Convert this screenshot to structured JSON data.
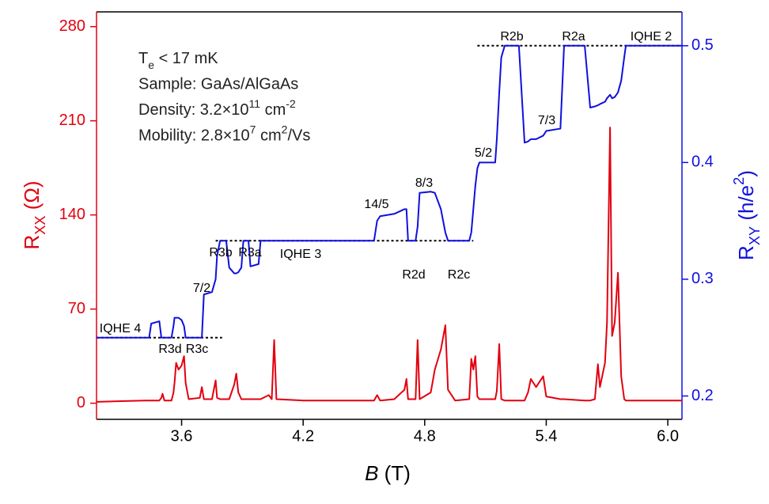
{
  "chart_data": {
    "type": "line",
    "x_label": [
      {
        "i": "B"
      },
      " (T)"
    ],
    "y_label": [
      "R",
      {
        "sub": "XX"
      },
      " (Ω)"
    ],
    "y2_label": [
      "R",
      {
        "sub": "XY"
      },
      " (h/e",
      {
        "sup": "2"
      },
      ")"
    ],
    "info": [
      [
        "T",
        {
          "sub": "e"
        },
        " < 17 mK"
      ],
      [
        "Sample: GaAs/AlGaAs"
      ],
      [
        "Density: 3.2×10",
        {
          "sup": "11"
        },
        " cm",
        {
          "sup": "-2"
        }
      ],
      [
        "Mobility: 2.8×10",
        {
          "sup": "7"
        },
        " cm",
        {
          "sup": "2"
        },
        "/Vs"
      ]
    ],
    "xlim": [
      3.18,
      6.07
    ],
    "xticks": [
      3.6,
      4.2,
      4.8,
      5.4,
      {
        "value": 6,
        "label": "6.0"
      }
    ],
    "ylim": [
      -12,
      291
    ],
    "yticks": [
      0,
      70,
      140,
      210,
      280
    ],
    "y2lim": [
      0.18,
      0.529
    ],
    "y2ticks": [
      0.2,
      0.3,
      0.4,
      0.5
    ],
    "x": [
      3.18,
      3.3,
      3.42,
      3.44,
      3.45,
      3.49,
      3.5,
      3.506,
      3.515,
      3.55,
      3.56,
      3.565,
      3.573,
      3.585,
      3.6,
      3.612,
      3.62,
      3.635,
      3.69,
      3.7,
      3.71,
      3.75,
      3.768,
      3.775,
      3.79,
      3.82,
      3.835,
      3.86,
      3.87,
      3.88,
      3.895,
      3.905,
      3.93,
      3.94,
      3.98,
      3.99,
      4.03,
      4.045,
      4.057,
      4.068,
      4.2,
      4.4,
      4.55,
      4.565,
      4.58,
      4.65,
      4.7,
      4.71,
      4.718,
      4.755,
      4.765,
      4.775,
      4.83,
      4.85,
      4.88,
      4.902,
      4.915,
      4.95,
      5.02,
      5.03,
      5.04,
      5.05,
      5.06,
      5.07,
      5.148,
      5.156,
      5.168,
      5.178,
      5.195,
      5.265,
      5.293,
      5.31,
      5.324,
      5.35,
      5.385,
      5.4,
      5.47,
      5.488,
      5.59,
      5.617,
      5.64,
      5.655,
      5.665,
      5.69,
      5.7,
      5.715,
      5.725,
      5.738,
      5.754,
      5.77,
      5.785,
      5.793,
      5.9,
      6.07
    ],
    "series": [
      {
        "name": "Rxx",
        "color": "#e3000f",
        "axis": "y",
        "values": [
          1,
          1.5,
          2,
          2,
          2,
          2,
          4,
          7,
          2,
          2,
          8,
          15,
          30,
          25,
          28,
          35,
          15,
          3,
          4,
          12,
          3,
          3,
          17,
          4,
          3,
          3,
          3,
          14,
          22,
          8,
          3,
          3,
          3,
          3,
          3,
          3,
          6,
          3,
          47,
          3,
          2,
          2,
          2,
          6,
          2,
          3,
          10,
          18,
          3,
          3,
          47,
          3,
          8,
          25,
          40,
          58,
          10,
          2,
          3,
          33,
          25,
          35,
          5,
          3,
          3,
          9,
          44,
          3,
          2,
          2,
          2,
          8,
          18,
          12,
          20,
          5,
          3,
          3,
          2,
          2,
          3,
          29,
          12,
          30,
          60,
          205,
          50,
          60,
          97,
          20,
          3,
          2,
          2,
          2
        ]
      },
      {
        "name": "Rxy",
        "color": "#1010e0",
        "axis": "y2",
        "values": [
          0.25,
          0.25,
          0.25,
          0.25,
          0.262,
          0.264,
          0.25,
          0.25,
          0.25,
          0.25,
          0.26,
          0.267,
          0.267,
          0.267,
          0.265,
          0.26,
          0.25,
          0.25,
          0.25,
          0.25,
          0.287,
          0.289,
          0.3,
          0.32,
          0.333,
          0.333,
          0.31,
          0.305,
          0.305,
          0.306,
          0.31,
          0.333,
          0.333,
          0.311,
          0.313,
          0.333,
          0.333,
          0.333,
          0.333,
          0.333,
          0.333,
          0.333,
          0.333,
          0.35,
          0.354,
          0.356,
          0.36,
          0.36,
          0.333,
          0.333,
          0.345,
          0.374,
          0.375,
          0.374,
          0.36,
          0.34,
          0.333,
          0.333,
          0.333,
          0.34,
          0.36,
          0.38,
          0.395,
          0.4,
          0.4,
          0.42,
          0.46,
          0.49,
          0.5,
          0.5,
          0.417,
          0.418,
          0.42,
          0.42,
          0.423,
          0.427,
          0.429,
          0.5,
          0.5,
          0.447,
          0.448,
          0.449,
          0.45,
          0.452,
          0.455,
          0.458,
          0.455,
          0.456,
          0.46,
          0.47,
          0.49,
          0.5,
          0.5,
          0.5
        ]
      }
    ],
    "reference_lines": [
      {
        "y": 0.25,
        "x": [
          3.18,
          3.8
        ],
        "label": "IQHE 4"
      },
      {
        "y": 0.333,
        "x": [
          3.768,
          5.04
        ],
        "label": "IQHE 3"
      },
      {
        "y": 0.5,
        "x": [
          5.06,
          6.07
        ],
        "label": "IQHE 2"
      }
    ],
    "annotations": [
      "R3d",
      "R3c",
      "7/2",
      "R3b",
      "R3a",
      "14/5",
      "8/3",
      "R2d",
      "R2c",
      "5/2",
      "R2b",
      "R2a",
      "7/3"
    ]
  }
}
